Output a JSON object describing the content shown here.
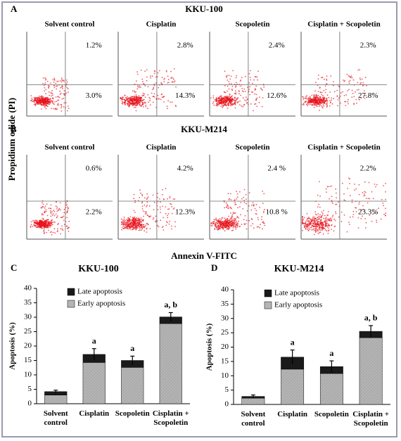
{
  "panels": [
    {
      "label": "A",
      "title": "KKU-100",
      "plots": [
        {
          "title": "Solvent control",
          "upper": "1.2%",
          "lower": "3.0%"
        },
        {
          "title": "Cisplatin",
          "upper": "2.8%",
          "lower": "14.3%"
        },
        {
          "title": "Scopoletin",
          "upper": "2.4%",
          "lower": "12.6%"
        },
        {
          "title": "Cisplatin + Scopoletin",
          "upper": "2.3%",
          "lower": "27.8%"
        }
      ]
    },
    {
      "label": "B",
      "title": "KKU-M214",
      "plots": [
        {
          "title": "Solvent control",
          "upper": "0.6%",
          "lower": "2.2%"
        },
        {
          "title": "Cisplatin",
          "upper": "4.2%",
          "lower": "12.3%"
        },
        {
          "title": "Scopoletin",
          "upper": "2.4 %",
          "lower": "10.8 %"
        },
        {
          "title": "Cisplatin + Scopoletin",
          "upper": "2.2%",
          "lower": "23.3%"
        }
      ]
    }
  ],
  "y_axis_label": "Propidium odide (PI)",
  "x_axis_label": "Annexin V-FITC",
  "chart_data": [
    {
      "type": "bar",
      "label": "C",
      "title": "KKU-100",
      "ylabel": "Apoptosis (%)",
      "categories": [
        "Solvent control",
        "Cisplatin",
        "Scopoletin",
        "Cisplatin + Scopoletin"
      ],
      "series": [
        {
          "name": "Late apoptosis",
          "color": "#1a1a1a",
          "values": [
            1.2,
            2.8,
            2.4,
            2.3
          ]
        },
        {
          "name": "Early apoptosis",
          "color": "#b5b5b5",
          "values": [
            3.0,
            14.3,
            12.6,
            27.8
          ]
        }
      ],
      "errors": [
        0.5,
        2,
        1.5,
        1.5
      ],
      "annotations": [
        null,
        "a",
        "a",
        "a, b"
      ],
      "ylim": [
        0,
        40
      ],
      "yticks": [
        0,
        5,
        10,
        15,
        20,
        25,
        30,
        35,
        40
      ]
    },
    {
      "type": "bar",
      "label": "D",
      "title": "KKU-M214",
      "ylabel": "Apoptosis (%)",
      "categories": [
        "Solvent control",
        "Cisplatin",
        "Scopoletin",
        "Cisplatin + Scopoletin"
      ],
      "series": [
        {
          "name": "Late apoptosis",
          "color": "#1a1a1a",
          "values": [
            0.6,
            4.2,
            2.4,
            2.2
          ]
        },
        {
          "name": "Early apoptosis",
          "color": "#b5b5b5",
          "values": [
            2.2,
            12.3,
            10.8,
            23.3
          ]
        }
      ],
      "errors": [
        0.5,
        2.5,
        2,
        2
      ],
      "annotations": [
        null,
        "a",
        "a",
        "a, b"
      ],
      "ylim": [
        0,
        40
      ],
      "yticks": [
        0,
        5,
        10,
        15,
        20,
        25,
        30,
        35,
        40
      ]
    }
  ]
}
